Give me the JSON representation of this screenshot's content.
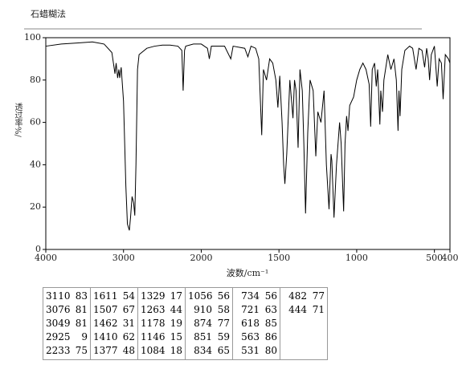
{
  "chart_data": {
    "type": "line",
    "title": "石蜡糊法",
    "x_label": "波数/cm⁻¹",
    "y_label": "透过率%/",
    "xlim": [
      4000,
      400
    ],
    "x_scale_change": 2000,
    "x_scale_factor": 2,
    "xticks": [
      4000,
      3000,
      2000,
      1500,
      1000,
      500,
      400
    ],
    "ylim": [
      0,
      100
    ],
    "yticks": [
      0,
      20,
      40,
      60,
      80,
      100
    ],
    "color": "#000000",
    "x": [
      4000,
      3800,
      3600,
      3400,
      3250,
      3150,
      3110,
      3095,
      3076,
      3060,
      3049,
      3030,
      3000,
      2970,
      2950,
      2925,
      2910,
      2890,
      2870,
      2855,
      2840,
      2820,
      2800,
      2700,
      2600,
      2500,
      2400,
      2300,
      2250,
      2233,
      2215,
      2200,
      2100,
      2000,
      1960,
      1948,
      1935,
      1850,
      1810,
      1795,
      1720,
      1700,
      1680,
      1650,
      1630,
      1611,
      1600,
      1580,
      1560,
      1540,
      1520,
      1507,
      1495,
      1480,
      1470,
      1462,
      1450,
      1430,
      1410,
      1400,
      1390,
      1377,
      1365,
      1350,
      1340,
      1329,
      1315,
      1300,
      1280,
      1263,
      1250,
      1230,
      1210,
      1195,
      1178,
      1165,
      1160,
      1146,
      1130,
      1110,
      1100,
      1084,
      1075,
      1065,
      1056,
      1045,
      1020,
      1000,
      980,
      960,
      940,
      920,
      910,
      900,
      885,
      874,
      865,
      851,
      845,
      834,
      825,
      800,
      780,
      760,
      745,
      734,
      728,
      721,
      710,
      690,
      660,
      640,
      618,
      600,
      580,
      563,
      550,
      540,
      531,
      520,
      500,
      482,
      470,
      455,
      444,
      430,
      410,
      400
    ],
    "values": [
      96,
      97,
      97.5,
      98,
      97,
      93,
      83,
      88,
      81,
      85,
      81,
      86,
      70,
      30,
      12,
      9,
      15,
      25,
      22,
      16,
      40,
      85,
      92,
      95,
      96,
      96.5,
      96.5,
      96,
      94,
      75,
      94,
      96,
      97,
      97,
      95,
      90,
      96,
      96,
      90,
      96,
      95,
      91,
      96,
      95,
      90,
      54,
      85,
      80,
      90,
      88,
      80,
      67,
      82,
      60,
      40,
      31,
      45,
      80,
      62,
      80,
      75,
      48,
      85,
      75,
      50,
      17,
      55,
      80,
      75,
      44,
      65,
      60,
      75,
      40,
      19,
      45,
      42,
      15,
      40,
      60,
      50,
      18,
      50,
      63,
      56,
      68,
      72,
      80,
      85,
      88,
      85,
      78,
      58,
      85,
      88,
      77,
      85,
      59,
      75,
      65,
      80,
      92,
      85,
      90,
      80,
      56,
      75,
      63,
      85,
      94,
      96,
      95,
      85,
      95,
      94,
      86,
      95,
      90,
      80,
      92,
      96,
      77,
      90,
      88,
      71,
      92,
      90,
      88
    ]
  },
  "peak_table": {
    "columns": [
      [
        [
          3110,
          83
        ],
        [
          3076,
          81
        ],
        [
          3049,
          81
        ],
        [
          2925,
          9
        ],
        [
          2233,
          75
        ]
      ],
      [
        [
          1611,
          54
        ],
        [
          1507,
          67
        ],
        [
          1462,
          31
        ],
        [
          1410,
          62
        ],
        [
          1377,
          48
        ]
      ],
      [
        [
          1329,
          17
        ],
        [
          1263,
          44
        ],
        [
          1178,
          19
        ],
        [
          1146,
          15
        ],
        [
          1084,
          18
        ]
      ],
      [
        [
          1056,
          56
        ],
        [
          910,
          58
        ],
        [
          874,
          77
        ],
        [
          851,
          59
        ],
        [
          834,
          65
        ]
      ],
      [
        [
          734,
          56
        ],
        [
          721,
          63
        ],
        [
          618,
          85
        ],
        [
          563,
          86
        ],
        [
          531,
          80
        ]
      ],
      [
        [
          482,
          77
        ],
        [
          444,
          71
        ]
      ]
    ]
  }
}
